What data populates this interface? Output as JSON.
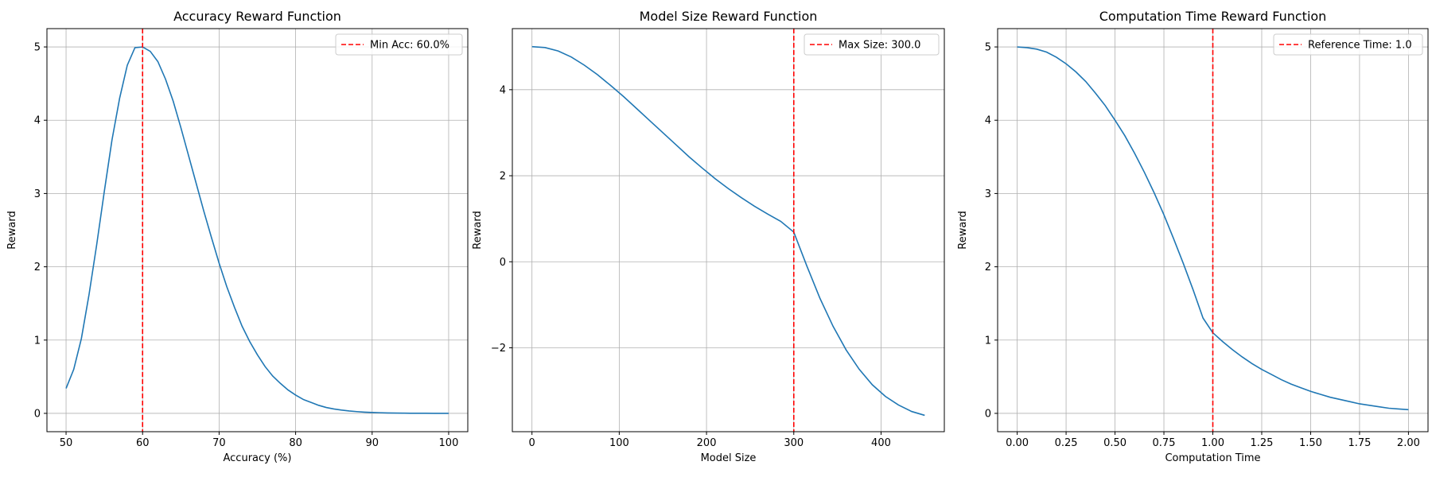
{
  "chart_data": [
    {
      "type": "line",
      "title": "Accuracy Reward Function",
      "xlabel": "Accuracy (%)",
      "ylabel": "Reward",
      "xlim": [
        47.5,
        102.5
      ],
      "ylim": [
        -0.25,
        5.25
      ],
      "xticks": [
        50,
        60,
        70,
        80,
        90,
        100
      ],
      "xtick_labels": [
        "50",
        "60",
        "70",
        "80",
        "90",
        "100"
      ],
      "yticks": [
        0,
        1,
        2,
        3,
        4,
        5
      ],
      "ytick_labels": [
        "0",
        "1",
        "2",
        "3",
        "4",
        "5"
      ],
      "grid": true,
      "legend_position": "top-right",
      "series": [
        {
          "color": "#1f77b4",
          "x": [
            50,
            51,
            52,
            53,
            54,
            55,
            56,
            57,
            58,
            59,
            60,
            61,
            62,
            63,
            64,
            65,
            66,
            67,
            68,
            69,
            70,
            71,
            72,
            73,
            74,
            75,
            76,
            77,
            78,
            79,
            80,
            81,
            82,
            83,
            84,
            85,
            86,
            87,
            88,
            89,
            90,
            91,
            92,
            93,
            94,
            95,
            96,
            97,
            98,
            99,
            100
          ],
          "y": [
            0.34,
            0.6,
            1.02,
            1.62,
            2.3,
            3.03,
            3.73,
            4.3,
            4.75,
            4.99,
            5.0,
            4.94,
            4.8,
            4.56,
            4.26,
            3.9,
            3.52,
            3.14,
            2.76,
            2.4,
            2.05,
            1.73,
            1.45,
            1.19,
            0.98,
            0.8,
            0.64,
            0.51,
            0.41,
            0.32,
            0.25,
            0.19,
            0.15,
            0.11,
            0.08,
            0.06,
            0.045,
            0.033,
            0.024,
            0.017,
            0.012,
            0.009,
            0.006,
            0.004,
            0.003,
            0.002,
            0.001,
            0.001,
            0.0005,
            0.0003,
            0.0002
          ]
        }
      ],
      "vline": {
        "x": 60,
        "color": "#ff0000",
        "label": "Min Acc: 60.0%"
      }
    },
    {
      "type": "line",
      "title": "Model Size Reward Function",
      "xlabel": "Model Size",
      "ylabel": "Reward",
      "xlim": [
        -22.5,
        472.5
      ],
      "ylim": [
        -3.95,
        5.42
      ],
      "xticks": [
        0,
        100,
        200,
        300,
        400
      ],
      "xtick_labels": [
        "0",
        "100",
        "200",
        "300",
        "400"
      ],
      "yticks": [
        -2,
        0,
        2,
        4
      ],
      "ytick_labels": [
        "−2",
        "0",
        "2",
        "4"
      ],
      "grid": true,
      "legend_position": "top-right",
      "series": [
        {
          "color": "#1f77b4",
          "x": [
            0,
            15,
            30,
            45,
            60,
            75,
            90,
            105,
            120,
            135,
            150,
            165,
            180,
            195,
            210,
            225,
            240,
            255,
            270,
            285,
            300,
            315,
            330,
            345,
            360,
            375,
            390,
            405,
            420,
            435,
            450
          ],
          "y": [
            5.0,
            4.98,
            4.9,
            4.76,
            4.57,
            4.35,
            4.1,
            3.84,
            3.56,
            3.28,
            3.0,
            2.72,
            2.44,
            2.18,
            1.93,
            1.7,
            1.49,
            1.29,
            1.11,
            0.94,
            0.69,
            -0.1,
            -0.85,
            -1.5,
            -2.05,
            -2.5,
            -2.86,
            -3.13,
            -3.33,
            -3.48,
            -3.57
          ]
        }
      ],
      "vline": {
        "x": 300,
        "color": "#ff0000",
        "label": "Max Size: 300.0"
      }
    },
    {
      "type": "line",
      "title": "Computation Time Reward Function",
      "xlabel": "Computation Time",
      "ylabel": "Reward",
      "xlim": [
        -0.1,
        2.1
      ],
      "ylim": [
        -0.25,
        5.25
      ],
      "xticks": [
        0,
        0.25,
        0.5,
        0.75,
        1.0,
        1.25,
        1.5,
        1.75,
        2.0
      ],
      "xtick_labels": [
        "0.00",
        "0.25",
        "0.50",
        "0.75",
        "1.00",
        "1.25",
        "1.50",
        "1.75",
        "2.00"
      ],
      "yticks": [
        0,
        1,
        2,
        3,
        4,
        5
      ],
      "ytick_labels": [
        "0",
        "1",
        "2",
        "3",
        "4",
        "5"
      ],
      "grid": true,
      "legend_position": "top-right",
      "series": [
        {
          "color": "#1f77b4",
          "x": [
            0,
            0.05,
            0.1,
            0.15,
            0.2,
            0.25,
            0.3,
            0.35,
            0.4,
            0.45,
            0.5,
            0.55,
            0.6,
            0.65,
            0.7,
            0.75,
            0.8,
            0.85,
            0.9,
            0.95,
            1.0,
            1.05,
            1.1,
            1.15,
            1.2,
            1.25,
            1.3,
            1.35,
            1.4,
            1.45,
            1.5,
            1.55,
            1.6,
            1.65,
            1.7,
            1.75,
            1.8,
            1.85,
            1.9,
            1.95,
            2.0
          ],
          "y": [
            5.0,
            4.99,
            4.97,
            4.93,
            4.86,
            4.77,
            4.66,
            4.53,
            4.37,
            4.2,
            4.0,
            3.79,
            3.55,
            3.29,
            3.01,
            2.71,
            2.38,
            2.04,
            1.68,
            1.3,
            1.1,
            0.98,
            0.87,
            0.77,
            0.68,
            0.6,
            0.53,
            0.46,
            0.4,
            0.35,
            0.3,
            0.26,
            0.22,
            0.19,
            0.16,
            0.13,
            0.11,
            0.09,
            0.07,
            0.06,
            0.05
          ]
        }
      ],
      "vline": {
        "x": 1.0,
        "color": "#ff0000",
        "label": "Reference Time: 1.0"
      }
    }
  ]
}
